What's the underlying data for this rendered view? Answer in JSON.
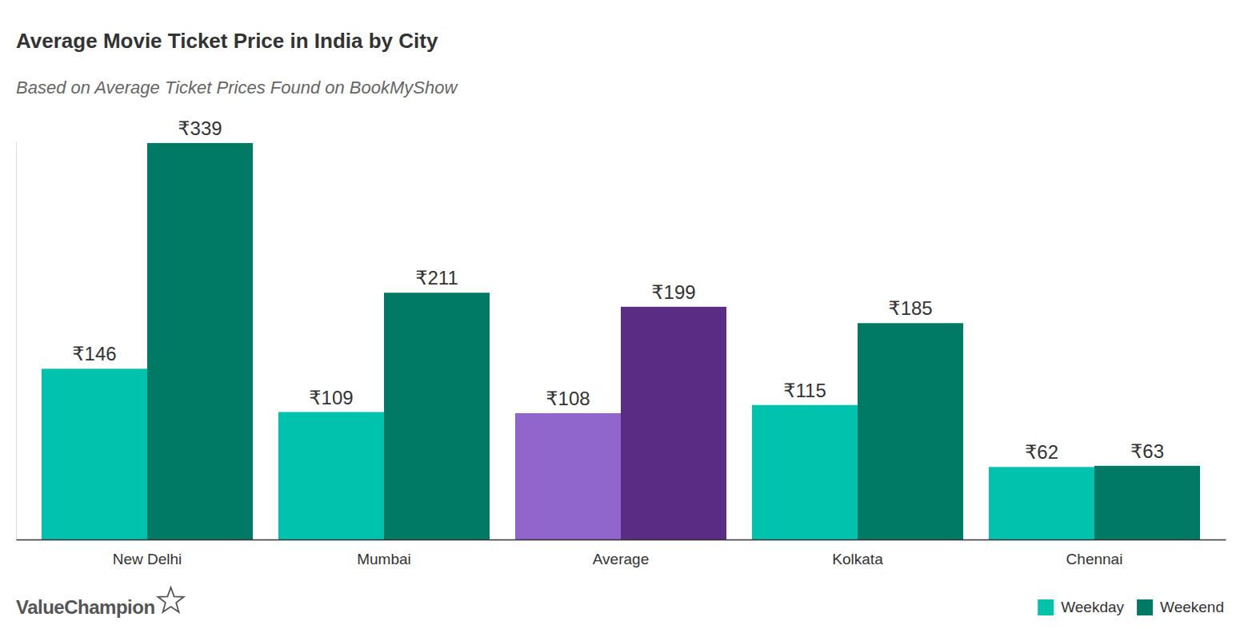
{
  "chart_data": {
    "type": "bar",
    "title": "Average Movie Ticket Price in India by City",
    "subtitle": "Based on Average Ticket Prices Found on BookMyShow",
    "watermark": "ValueChampion",
    "categories": [
      "New Delhi",
      "Mumbai",
      "Average",
      "Kolkata",
      "Chennai"
    ],
    "series": [
      {
        "name": "Weekday",
        "color": "#00c2ad",
        "colors": [
          "#00c2ad",
          "#00c2ad",
          "#9066cc",
          "#00c2ad",
          "#00c2ad"
        ],
        "values": [
          146,
          109,
          108,
          115,
          62
        ],
        "value_labels": [
          "₹146",
          "₹109",
          "₹108",
          "₹115",
          "₹62"
        ]
      },
      {
        "name": "Weekend",
        "color": "#007a64",
        "colors": [
          "#007a64",
          "#007a64",
          "#5b2c83",
          "#007a64",
          "#007a64"
        ],
        "values": [
          339,
          211,
          199,
          185,
          63
        ],
        "value_labels": [
          "₹339",
          "₹211",
          "₹199",
          "₹185",
          "₹63"
        ]
      }
    ],
    "ylim": [
      0,
      340
    ],
    "data_labels": true,
    "tick_labels": "x",
    "grid": false,
    "legend": "bottom-right"
  }
}
